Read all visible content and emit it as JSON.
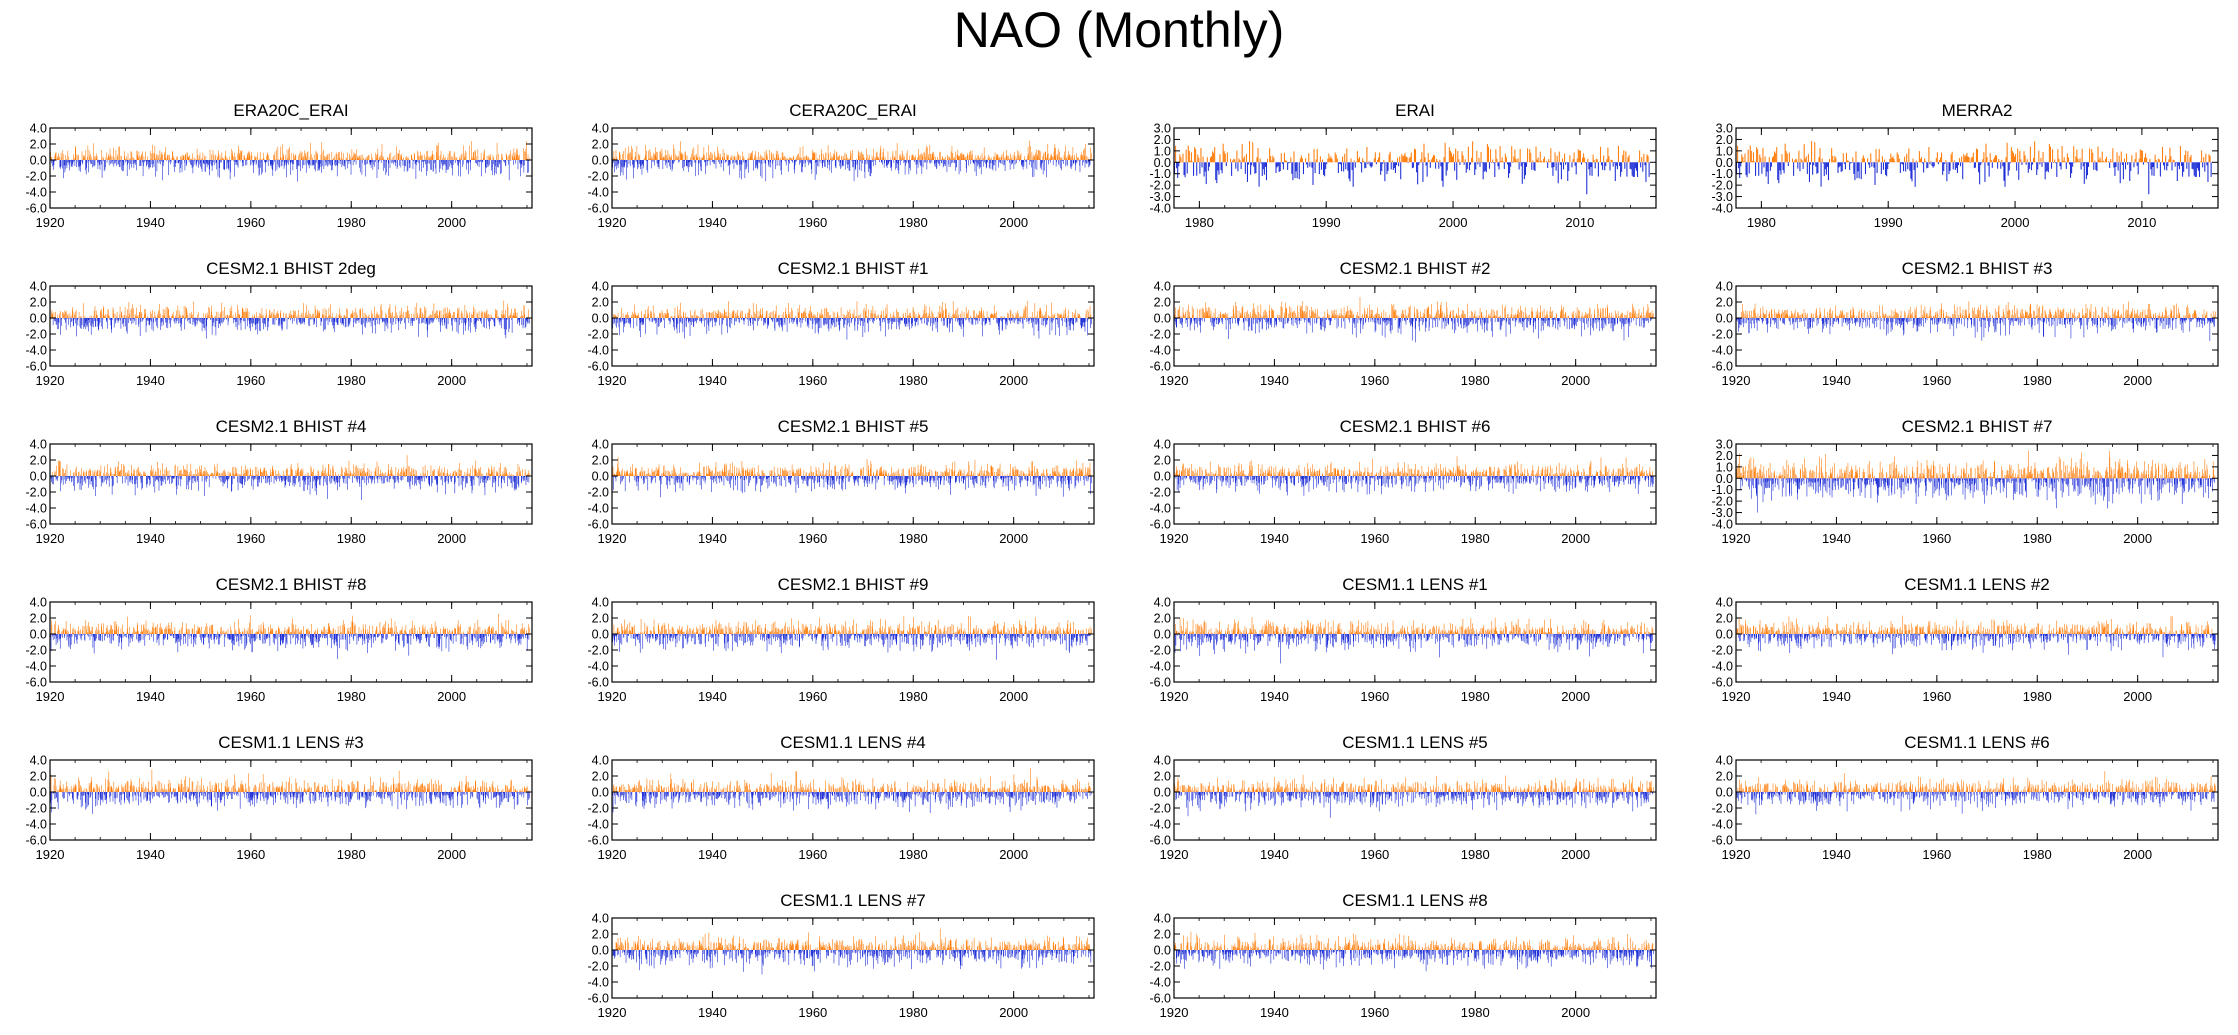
{
  "title": "NAO (Monthly)",
  "colors": {
    "positive": "#ff7f0e",
    "negative": "#1f2fd6",
    "axis": "#000000"
  },
  "chart_data": [
    {
      "type": "bar",
      "title": "ERA20C_ERAI",
      "xlim": [
        1920,
        2016
      ],
      "ylim": [
        -6,
        4
      ],
      "yticks": [
        "4.0",
        "2.0",
        "0.0",
        "-2.0",
        "-4.0",
        "-6.0"
      ],
      "xticks": [
        "1920",
        "1940",
        "1960",
        "1980",
        "2000"
      ],
      "seed": 11
    },
    {
      "type": "bar",
      "title": "CERA20C_ERAI",
      "xlim": [
        1920,
        2016
      ],
      "ylim": [
        -6,
        4
      ],
      "yticks": [
        "4.0",
        "2.0",
        "0.0",
        "-2.0",
        "-4.0",
        "-6.0"
      ],
      "xticks": [
        "1920",
        "1940",
        "1960",
        "1980",
        "2000"
      ],
      "seed": 23
    },
    {
      "type": "bar",
      "title": "ERAI",
      "xlim": [
        1978,
        2016
      ],
      "ylim": [
        -4,
        3
      ],
      "yticks": [
        "3.0",
        "2.0",
        "1.0",
        "0.0",
        "-1.0",
        "-2.0",
        "-3.0",
        "-4.0"
      ],
      "xticks": [
        "1980",
        "1990",
        "2000",
        "2010"
      ],
      "seed": 37
    },
    {
      "type": "bar",
      "title": "MERRA2",
      "xlim": [
        1978,
        2016
      ],
      "ylim": [
        -4,
        3
      ],
      "yticks": [
        "3.0",
        "2.0",
        "1.0",
        "0.0",
        "-1.0",
        "-2.0",
        "-3.0",
        "-4.0"
      ],
      "xticks": [
        "1980",
        "1990",
        "2000",
        "2010"
      ],
      "seed": 37
    },
    {
      "type": "bar",
      "title": "CESM2.1 BHIST 2deg",
      "xlim": [
        1920,
        2016
      ],
      "ylim": [
        -6,
        4
      ],
      "yticks": [
        "4.0",
        "2.0",
        "0.0",
        "-2.0",
        "-4.0",
        "-6.0"
      ],
      "xticks": [
        "1920",
        "1940",
        "1960",
        "1980",
        "2000"
      ],
      "seed": 41
    },
    {
      "type": "bar",
      "title": "CESM2.1 BHIST #1",
      "xlim": [
        1920,
        2016
      ],
      "ylim": [
        -6,
        4
      ],
      "yticks": [
        "4.0",
        "2.0",
        "0.0",
        "-2.0",
        "-4.0",
        "-6.0"
      ],
      "xticks": [
        "1920",
        "1940",
        "1960",
        "1980",
        "2000"
      ],
      "seed": 53
    },
    {
      "type": "bar",
      "title": "CESM2.1 BHIST #2",
      "xlim": [
        1920,
        2016
      ],
      "ylim": [
        -6,
        4
      ],
      "yticks": [
        "4.0",
        "2.0",
        "0.0",
        "-2.0",
        "-4.0",
        "-6.0"
      ],
      "xticks": [
        "1920",
        "1940",
        "1960",
        "1980",
        "2000"
      ],
      "seed": 67
    },
    {
      "type": "bar",
      "title": "CESM2.1 BHIST #3",
      "xlim": [
        1920,
        2016
      ],
      "ylim": [
        -6,
        4
      ],
      "yticks": [
        "4.0",
        "2.0",
        "0.0",
        "-2.0",
        "-4.0",
        "-6.0"
      ],
      "xticks": [
        "1920",
        "1940",
        "1960",
        "1980",
        "2000"
      ],
      "seed": 71
    },
    {
      "type": "bar",
      "title": "CESM2.1 BHIST #4",
      "xlim": [
        1920,
        2016
      ],
      "ylim": [
        -6,
        4
      ],
      "yticks": [
        "4.0",
        "2.0",
        "0.0",
        "-2.0",
        "-4.0",
        "-6.0"
      ],
      "xticks": [
        "1920",
        "1940",
        "1960",
        "1980",
        "2000"
      ],
      "seed": 83
    },
    {
      "type": "bar",
      "title": "CESM2.1 BHIST #5",
      "xlim": [
        1920,
        2016
      ],
      "ylim": [
        -6,
        4
      ],
      "yticks": [
        "4.0",
        "2.0",
        "0.0",
        "-2.0",
        "-4.0",
        "-6.0"
      ],
      "xticks": [
        "1920",
        "1940",
        "1960",
        "1980",
        "2000"
      ],
      "seed": 97
    },
    {
      "type": "bar",
      "title": "CESM2.1 BHIST #6",
      "xlim": [
        1920,
        2016
      ],
      "ylim": [
        -6,
        4
      ],
      "yticks": [
        "4.0",
        "2.0",
        "0.0",
        "-2.0",
        "-4.0",
        "-6.0"
      ],
      "xticks": [
        "1920",
        "1940",
        "1960",
        "1980",
        "2000"
      ],
      "seed": 101
    },
    {
      "type": "bar",
      "title": "CESM2.1 BHIST #7",
      "xlim": [
        1920,
        2016
      ],
      "ylim": [
        -4,
        3
      ],
      "yticks": [
        "3.0",
        "2.0",
        "1.0",
        "0.0",
        "-1.0",
        "-2.0",
        "-3.0",
        "-4.0"
      ],
      "xticks": [
        "1920",
        "1940",
        "1960",
        "1980",
        "2000"
      ],
      "seed": 113
    },
    {
      "type": "bar",
      "title": "CESM2.1 BHIST #8",
      "xlim": [
        1920,
        2016
      ],
      "ylim": [
        -6,
        4
      ],
      "yticks": [
        "4.0",
        "2.0",
        "0.0",
        "-2.0",
        "-4.0",
        "-6.0"
      ],
      "xticks": [
        "1920",
        "1940",
        "1960",
        "1980",
        "2000"
      ],
      "seed": 127
    },
    {
      "type": "bar",
      "title": "CESM2.1 BHIST #9",
      "xlim": [
        1920,
        2016
      ],
      "ylim": [
        -6,
        4
      ],
      "yticks": [
        "4.0",
        "2.0",
        "0.0",
        "-2.0",
        "-4.0",
        "-6.0"
      ],
      "xticks": [
        "1920",
        "1940",
        "1960",
        "1980",
        "2000"
      ],
      "seed": 131
    },
    {
      "type": "bar",
      "title": "CESM1.1 LENS #1",
      "xlim": [
        1920,
        2016
      ],
      "ylim": [
        -6,
        4
      ],
      "yticks": [
        "4.0",
        "2.0",
        "0.0",
        "-2.0",
        "-4.0",
        "-6.0"
      ],
      "xticks": [
        "1920",
        "1940",
        "1960",
        "1980",
        "2000"
      ],
      "seed": 139
    },
    {
      "type": "bar",
      "title": "CESM1.1 LENS #2",
      "xlim": [
        1920,
        2016
      ],
      "ylim": [
        -6,
        4
      ],
      "yticks": [
        "4.0",
        "2.0",
        "0.0",
        "-2.0",
        "-4.0",
        "-6.0"
      ],
      "xticks": [
        "1920",
        "1940",
        "1960",
        "1980",
        "2000"
      ],
      "seed": 149
    },
    {
      "type": "bar",
      "title": "CESM1.1 LENS #3",
      "xlim": [
        1920,
        2016
      ],
      "ylim": [
        -6,
        4
      ],
      "yticks": [
        "4.0",
        "2.0",
        "0.0",
        "-2.0",
        "-4.0",
        "-6.0"
      ],
      "xticks": [
        "1920",
        "1940",
        "1960",
        "1980",
        "2000"
      ],
      "seed": 157
    },
    {
      "type": "bar",
      "title": "CESM1.1 LENS #4",
      "xlim": [
        1920,
        2016
      ],
      "ylim": [
        -6,
        4
      ],
      "yticks": [
        "4.0",
        "2.0",
        "0.0",
        "-2.0",
        "-4.0",
        "-6.0"
      ],
      "xticks": [
        "1920",
        "1940",
        "1960",
        "1980",
        "2000"
      ],
      "seed": 163
    },
    {
      "type": "bar",
      "title": "CESM1.1 LENS #5",
      "xlim": [
        1920,
        2016
      ],
      "ylim": [
        -6,
        4
      ],
      "yticks": [
        "4.0",
        "2.0",
        "0.0",
        "-2.0",
        "-4.0",
        "-6.0"
      ],
      "xticks": [
        "1920",
        "1940",
        "1960",
        "1980",
        "2000"
      ],
      "seed": 173
    },
    {
      "type": "bar",
      "title": "CESM1.1 LENS #6",
      "xlim": [
        1920,
        2016
      ],
      "ylim": [
        -6,
        4
      ],
      "yticks": [
        "4.0",
        "2.0",
        "0.0",
        "-2.0",
        "-4.0",
        "-6.0"
      ],
      "xticks": [
        "1920",
        "1940",
        "1960",
        "1980",
        "2000"
      ],
      "seed": 179
    },
    {
      "type": "bar",
      "title": "CESM1.1 LENS #7",
      "xlim": [
        1920,
        2016
      ],
      "ylim": [
        -6,
        4
      ],
      "yticks": [
        "4.0",
        "2.0",
        "0.0",
        "-2.0",
        "-4.0",
        "-6.0"
      ],
      "xticks": [
        "1920",
        "1940",
        "1960",
        "1980",
        "2000"
      ],
      "seed": 191
    },
    {
      "type": "bar",
      "title": "CESM1.1 LENS #8",
      "xlim": [
        1920,
        2016
      ],
      "ylim": [
        -6,
        4
      ],
      "yticks": [
        "4.0",
        "2.0",
        "0.0",
        "-2.0",
        "-4.0",
        "-6.0"
      ],
      "xticks": [
        "1920",
        "1940",
        "1960",
        "1980",
        "2000"
      ],
      "seed": 197
    }
  ]
}
